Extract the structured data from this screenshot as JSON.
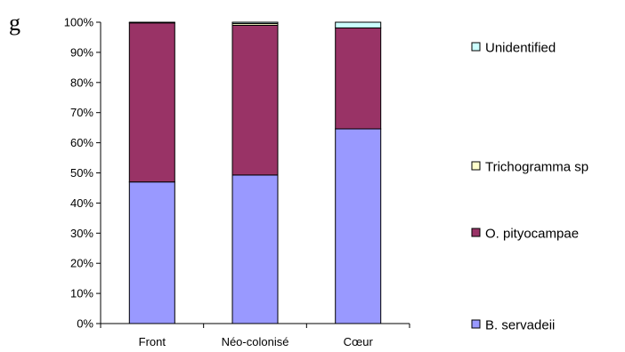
{
  "panel_label": "g",
  "chart_data": {
    "type": "bar",
    "stacked": true,
    "categories": [
      "Front",
      "Néo-colonisé",
      "Cœur"
    ],
    "series": [
      {
        "name": "B. servadeii",
        "color": "#9999ff",
        "values": [
          47,
          49.3,
          64.6
        ]
      },
      {
        "name": "O. pityocampae",
        "color": "#993366",
        "values": [
          52.8,
          49.7,
          33.5
        ]
      },
      {
        "name": "Trichogramma sp",
        "color": "#ffffcc",
        "values": [
          0,
          0.6,
          0
        ]
      },
      {
        "name": "Unidentified",
        "color": "#ccffff",
        "values": [
          0.2,
          0.4,
          1.9
        ]
      }
    ],
    "yticks": [
      "0%",
      "10%",
      "20%",
      "30%",
      "40%",
      "50%",
      "60%",
      "70%",
      "80%",
      "90%",
      "100%"
    ],
    "ylim": [
      0,
      100
    ],
    "xlabel": "",
    "ylabel": "",
    "title": "",
    "grid": false,
    "legend_position": "right"
  }
}
